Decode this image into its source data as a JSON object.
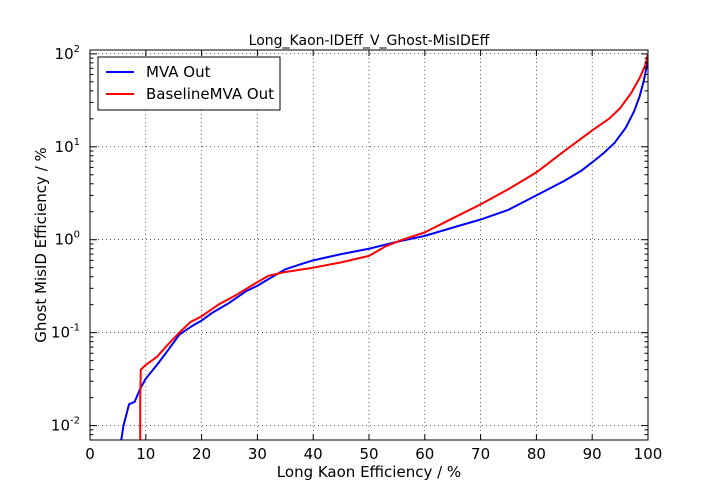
{
  "chart_data": {
    "type": "line",
    "title": "Long_Kaon-IDEff_V_Ghost-MisIDEff",
    "xlabel": "Long Kaon Efficiency / %",
    "ylabel": "Ghost MisID Efficiency / %",
    "xlim": [
      0,
      100
    ],
    "ylim": [
      0.007,
      110
    ],
    "yscale": "log",
    "grid": true,
    "legend_position": "top-left",
    "x_ticks": [
      "0",
      "10",
      "20",
      "30",
      "40",
      "50",
      "60",
      "70",
      "80",
      "90",
      "100"
    ],
    "y_ticks": [
      {
        "base": "10",
        "exp": "-2",
        "value": 0.01
      },
      {
        "base": "10",
        "exp": "-1",
        "value": 0.1
      },
      {
        "base": "10",
        "exp": "0",
        "value": 1
      },
      {
        "base": "10",
        "exp": "1",
        "value": 10
      },
      {
        "base": "10",
        "exp": "2",
        "value": 100
      }
    ],
    "series": [
      {
        "name": "MVA Out",
        "color": "#0000ff",
        "points": [
          [
            5.6,
            0.007
          ],
          [
            6.0,
            0.01
          ],
          [
            6.5,
            0.013
          ],
          [
            7.0,
            0.017
          ],
          [
            8.0,
            0.018
          ],
          [
            9.0,
            0.025
          ],
          [
            10.0,
            0.032
          ],
          [
            12.0,
            0.045
          ],
          [
            14.0,
            0.065
          ],
          [
            16.0,
            0.095
          ],
          [
            18.0,
            0.115
          ],
          [
            20.0,
            0.135
          ],
          [
            22.0,
            0.165
          ],
          [
            25.0,
            0.21
          ],
          [
            28.0,
            0.28
          ],
          [
            30.0,
            0.32
          ],
          [
            33.0,
            0.41
          ],
          [
            35.0,
            0.48
          ],
          [
            38.0,
            0.55
          ],
          [
            40.0,
            0.6
          ],
          [
            45.0,
            0.7
          ],
          [
            50.0,
            0.8
          ],
          [
            55.0,
            0.95
          ],
          [
            60.0,
            1.1
          ],
          [
            65.0,
            1.35
          ],
          [
            70.0,
            1.65
          ],
          [
            75.0,
            2.1
          ],
          [
            80.0,
            3.0
          ],
          [
            85.0,
            4.3
          ],
          [
            88.0,
            5.5
          ],
          [
            90.0,
            6.8
          ],
          [
            92.0,
            8.5
          ],
          [
            94.0,
            11.0
          ],
          [
            96.0,
            16.0
          ],
          [
            97.5,
            24.0
          ],
          [
            98.5,
            35.0
          ],
          [
            99.2,
            50.0
          ],
          [
            99.7,
            70.0
          ],
          [
            100.0,
            100.0
          ]
        ]
      },
      {
        "name": "BaselineMVA Out",
        "color": "#ff0000",
        "points": [
          [
            9.0,
            0.007
          ],
          [
            9.0,
            0.02
          ],
          [
            9.1,
            0.04
          ],
          [
            10.0,
            0.045
          ],
          [
            12.0,
            0.055
          ],
          [
            14.0,
            0.075
          ],
          [
            16.0,
            0.1
          ],
          [
            18.0,
            0.13
          ],
          [
            20.0,
            0.15
          ],
          [
            23.0,
            0.2
          ],
          [
            26.0,
            0.25
          ],
          [
            30.0,
            0.35
          ],
          [
            32.0,
            0.41
          ],
          [
            35.0,
            0.45
          ],
          [
            40.0,
            0.5
          ],
          [
            45.0,
            0.57
          ],
          [
            50.0,
            0.67
          ],
          [
            53.0,
            0.85
          ],
          [
            56.0,
            1.0
          ],
          [
            60.0,
            1.2
          ],
          [
            65.0,
            1.7
          ],
          [
            70.0,
            2.4
          ],
          [
            75.0,
            3.5
          ],
          [
            80.0,
            5.3
          ],
          [
            85.0,
            9.0
          ],
          [
            90.0,
            15.0
          ],
          [
            93.0,
            20.0
          ],
          [
            95.0,
            26.0
          ],
          [
            97.0,
            38.0
          ],
          [
            98.5,
            55.0
          ],
          [
            99.5,
            75.0
          ],
          [
            100.0,
            100.0
          ]
        ]
      }
    ]
  }
}
